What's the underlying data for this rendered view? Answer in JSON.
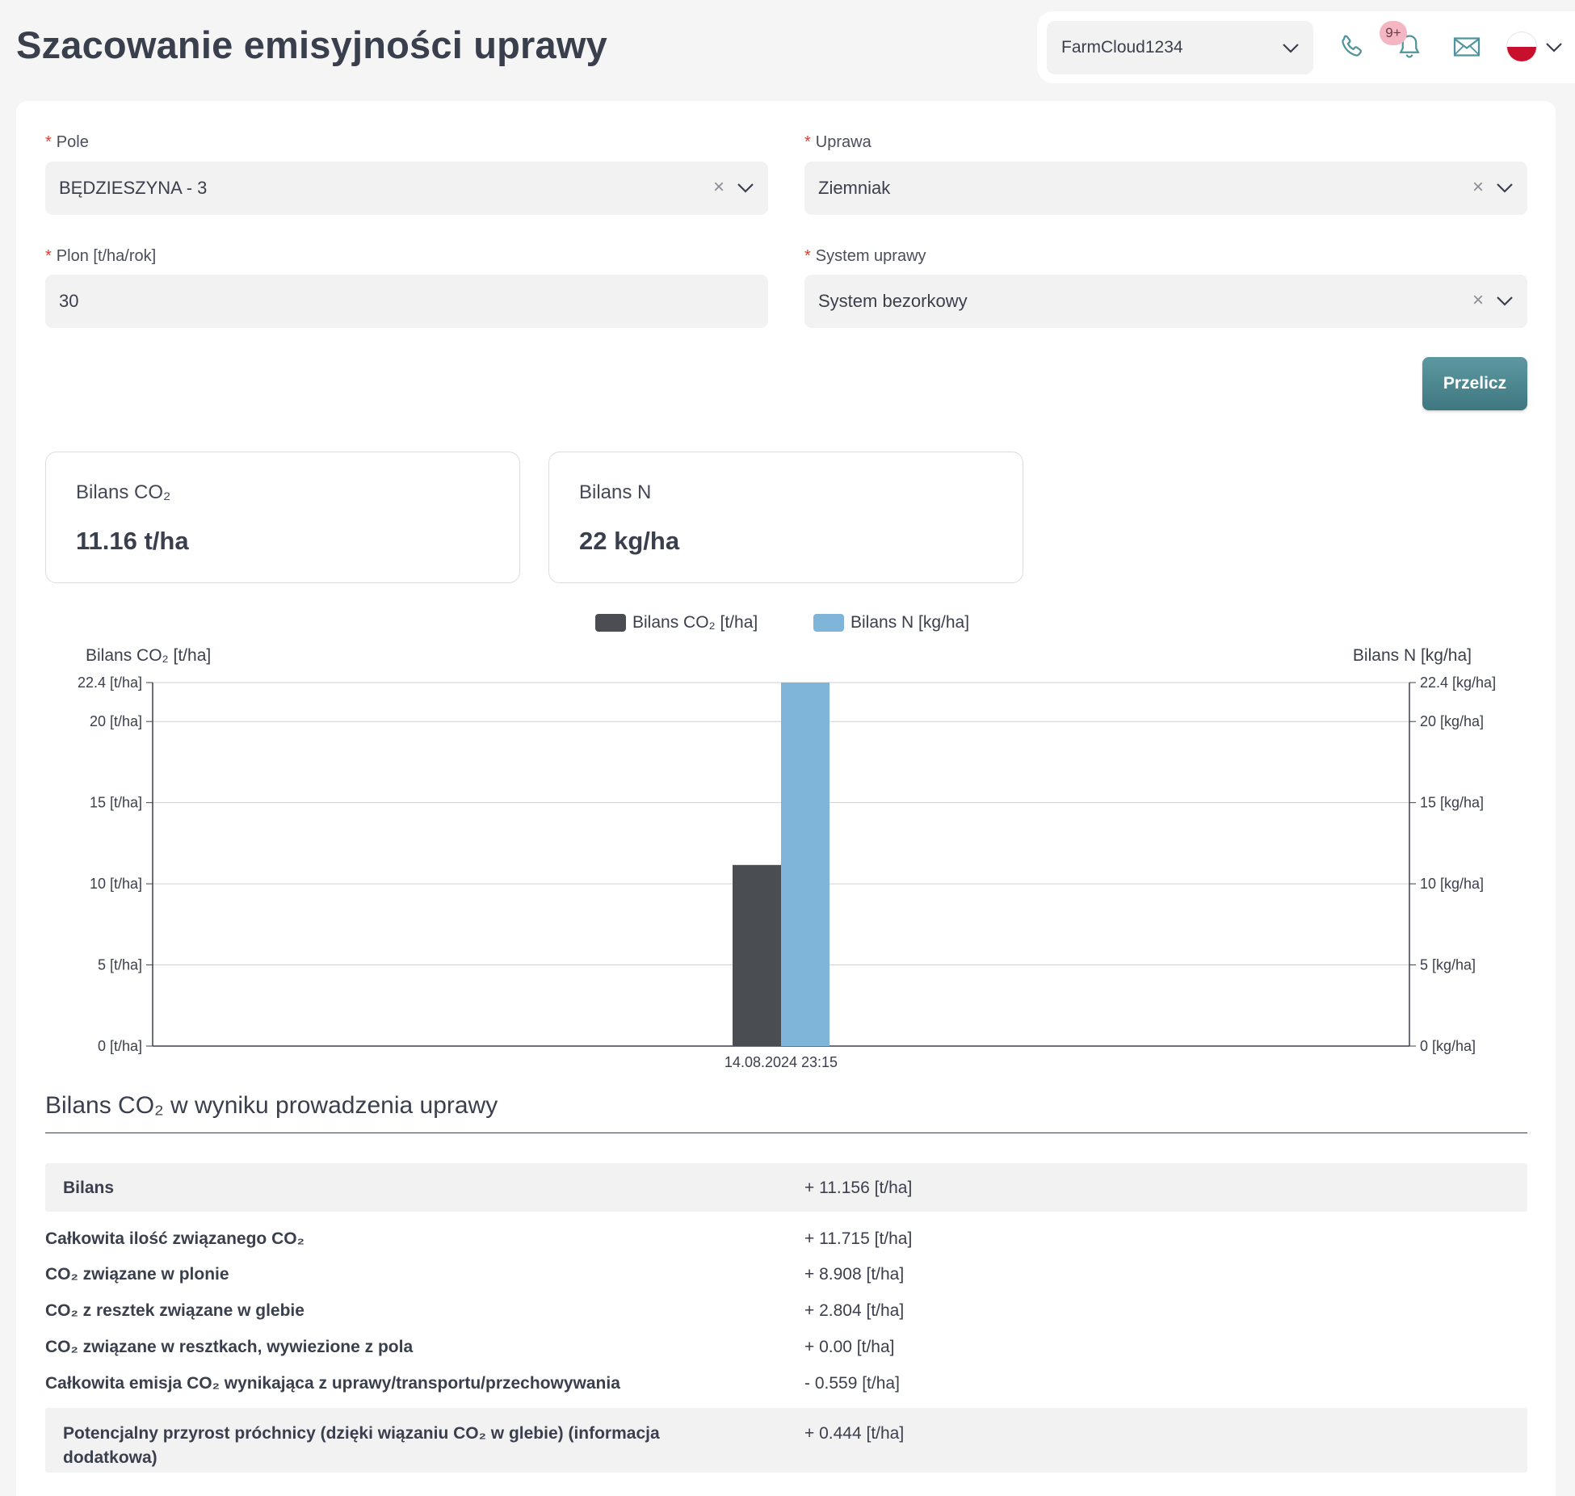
{
  "page": {
    "title": "Szacowanie emisyjności uprawy"
  },
  "header": {
    "account": "FarmCloud1234",
    "notifications_badge": "9+",
    "icons": [
      "phone-icon",
      "bell-icon",
      "mail-icon",
      "flag-pl-icon"
    ]
  },
  "form": {
    "pole": {
      "label": "Pole",
      "value": "BĘDZIESZYNA - 3"
    },
    "uprawa": {
      "label": "Uprawa",
      "value": "Ziemniak"
    },
    "plon": {
      "label": "Plon [t/ha/rok]",
      "value": "30"
    },
    "system": {
      "label": "System uprawy",
      "value": "System bezorkowy"
    },
    "submit_label": "Przelicz",
    "clear_glyph": "×",
    "required_mark": "*"
  },
  "stats": {
    "co2": {
      "label": "Bilans CO₂",
      "value": "11.16 t/ha"
    },
    "n": {
      "label": "Bilans N",
      "value": "22 kg/ha"
    }
  },
  "chart_data": {
    "type": "bar",
    "categories": [
      "14.08.2024 23:15"
    ],
    "series": [
      {
        "name": "Bilans CO₂ [t/ha]",
        "values": [
          11.16
        ],
        "color": "#4a4e52",
        "axis": "left"
      },
      {
        "name": "Bilans N [kg/ha]",
        "values": [
          22.4
        ],
        "color": "#7fb5d9",
        "axis": "right"
      }
    ],
    "ylabel_left": "Bilans CO₂ [t/ha]",
    "ylabel_right": "Bilans N [kg/ha]",
    "ylim_left": [
      0,
      22.4
    ],
    "ylim_right": [
      0,
      22.4
    ],
    "yticks_left": [
      "0 [t/ha]",
      "5 [t/ha]",
      "10 [t/ha]",
      "15 [t/ha]",
      "20 [t/ha]",
      "22.4 [t/ha]"
    ],
    "yticks_right": [
      "0 [kg/ha]",
      "5 [kg/ha]",
      "10 [kg/ha]",
      "15 [kg/ha]",
      "20 [kg/ha]",
      "22.4 [kg/ha]"
    ],
    "ytick_values": [
      0,
      5,
      10,
      15,
      20,
      22.4
    ],
    "legend_position": "top-center",
    "grid": true
  },
  "balance": {
    "title": "Bilans CO₂ w wyniku prowadzenia uprawy",
    "summary": {
      "label": "Bilans",
      "value": "+ 11.156 [t/ha]"
    },
    "rows": [
      {
        "label": "Całkowita ilość związanego CO₂",
        "value": "+ 11.715 [t/ha]"
      },
      {
        "label": "CO₂ związane w plonie",
        "value": "+ 8.908 [t/ha]"
      },
      {
        "label": "CO₂ z resztek związane w glebie",
        "value": "+ 2.804 [t/ha]"
      },
      {
        "label": "CO₂ związane w resztkach, wywiezione z pola",
        "value": "+ 0.00 [t/ha]"
      },
      {
        "label": "Całkowita emisja CO₂ wynikająca z uprawy/transportu/przechowywania",
        "value": "- 0.559 [t/ha]"
      }
    ],
    "extra": {
      "label_line1": "Potencjalny przyrost próchnicy (dzięki wiązaniu CO₂ w glebie) (informacja",
      "label_line2": "dodatkowa)",
      "value": "+ 0.444 [t/ha]"
    }
  }
}
